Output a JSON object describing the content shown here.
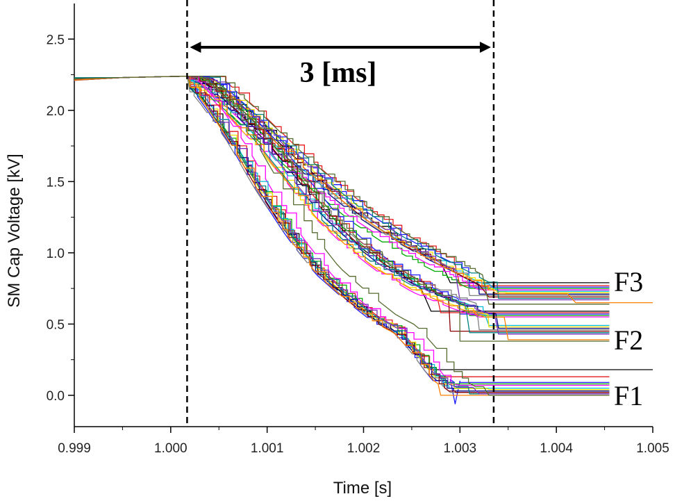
{
  "chart_data": {
    "type": "line",
    "xlabel": "Time [s]",
    "ylabel": "SM Cap Voltage [kV]",
    "xlim": [
      0.999,
      1.005
    ],
    "ylim": [
      -0.22,
      2.75
    ],
    "x_ticks": [
      0.999,
      1.0,
      1.001,
      1.002,
      1.003,
      1.004,
      1.005
    ],
    "x_tick_labels": [
      "0.999",
      "1.000",
      "1.001",
      "1.002",
      "1.003",
      "1.004",
      "1.005"
    ],
    "y_ticks": [
      0.0,
      0.5,
      1.0,
      1.5,
      2.0,
      2.5
    ],
    "y_tick_labels": [
      "0.0",
      "0.5",
      "1.0",
      "1.5",
      "2.0",
      "2.5"
    ],
    "grid": false,
    "initial_voltage_kV": 2.24,
    "fault_start_s": 1.00017,
    "fault_end_s": 1.00335,
    "interval_annotation": "3 [ms]",
    "group_labels": [
      "F3",
      "F2",
      "F1"
    ],
    "colors": [
      "#000000",
      "#e41a1c",
      "#1a1aff",
      "#00aa00",
      "#ff00ff",
      "#00bcd4",
      "#f0e000",
      "#000080",
      "#808080",
      "#8b0000",
      "#008080",
      "#7b2fbf",
      "#ff7f00",
      "#556b2f"
    ],
    "groups": [
      {
        "name": "F3",
        "knots": [
          [
            1.00017,
            2.24
          ],
          [
            1.0004,
            2.22
          ],
          [
            1.0008,
            1.98
          ],
          [
            1.0012,
            1.72
          ],
          [
            1.0016,
            1.48
          ],
          [
            1.002,
            1.26
          ],
          [
            1.0024,
            1.08
          ],
          [
            1.0028,
            0.93
          ],
          [
            1.0031,
            0.83
          ],
          [
            1.00335,
            0.74
          ]
        ],
        "final_values": [
          0.79,
          0.77,
          0.76,
          0.75,
          0.74,
          0.73,
          0.72,
          0.71,
          0.7,
          0.69,
          0.68,
          0.67,
          0.65,
          0.64
        ],
        "end_times": [
          1.0029,
          1.003,
          1.0031,
          1.0032,
          1.0033,
          1.0034,
          1.0035,
          1.0032,
          1.0031,
          1.0033,
          1.0034,
          1.003,
          1.0042,
          1.0033
        ]
      },
      {
        "name": "F2",
        "knots": [
          [
            1.00017,
            2.24
          ],
          [
            1.0004,
            2.17
          ],
          [
            1.0007,
            1.98
          ],
          [
            1.001,
            1.77
          ],
          [
            1.0013,
            1.52
          ],
          [
            1.0016,
            1.27
          ],
          [
            1.0019,
            1.08
          ],
          [
            1.0022,
            0.92
          ],
          [
            1.0026,
            0.76
          ],
          [
            1.003,
            0.65
          ],
          [
            1.00335,
            0.57
          ]
        ],
        "final_values": [
          0.59,
          0.58,
          0.57,
          0.56,
          0.55,
          0.49,
          0.48,
          0.47,
          0.46,
          0.45,
          0.44,
          0.43,
          0.39,
          0.38
        ],
        "end_times": [
          1.0027,
          1.0028,
          1.003,
          1.0031,
          1.0032,
          1.0033,
          1.0033,
          1.0034,
          1.0032,
          1.0029,
          1.0031,
          1.0034,
          1.0035,
          1.003
        ]
      },
      {
        "name": "F1",
        "knots": [
          [
            1.00017,
            2.24
          ],
          [
            1.0004,
            2.08
          ],
          [
            1.0007,
            1.78
          ],
          [
            1.001,
            1.43
          ],
          [
            1.0013,
            1.12
          ],
          [
            1.0016,
            0.86
          ],
          [
            1.0019,
            0.68
          ],
          [
            1.0022,
            0.52
          ],
          [
            1.0024,
            0.45
          ],
          [
            1.0026,
            0.3
          ],
          [
            1.0028,
            0.12
          ],
          [
            1.003,
            0.02
          ]
        ],
        "final_values": [
          0.18,
          0.13,
          0.09,
          0.08,
          0.07,
          0.05,
          0.04,
          0.03,
          0.02,
          0.02,
          0.01,
          0.01,
          0.0,
          0.0
        ],
        "end_times": [
          1.0027,
          1.0028,
          1.003,
          1.0031,
          1.0032,
          1.0033,
          1.0033,
          1.0034,
          1.0029,
          1.003,
          1.0031,
          1.0032,
          1.0028,
          1.0033
        ],
        "undershoot_min": -0.06
      }
    ]
  }
}
